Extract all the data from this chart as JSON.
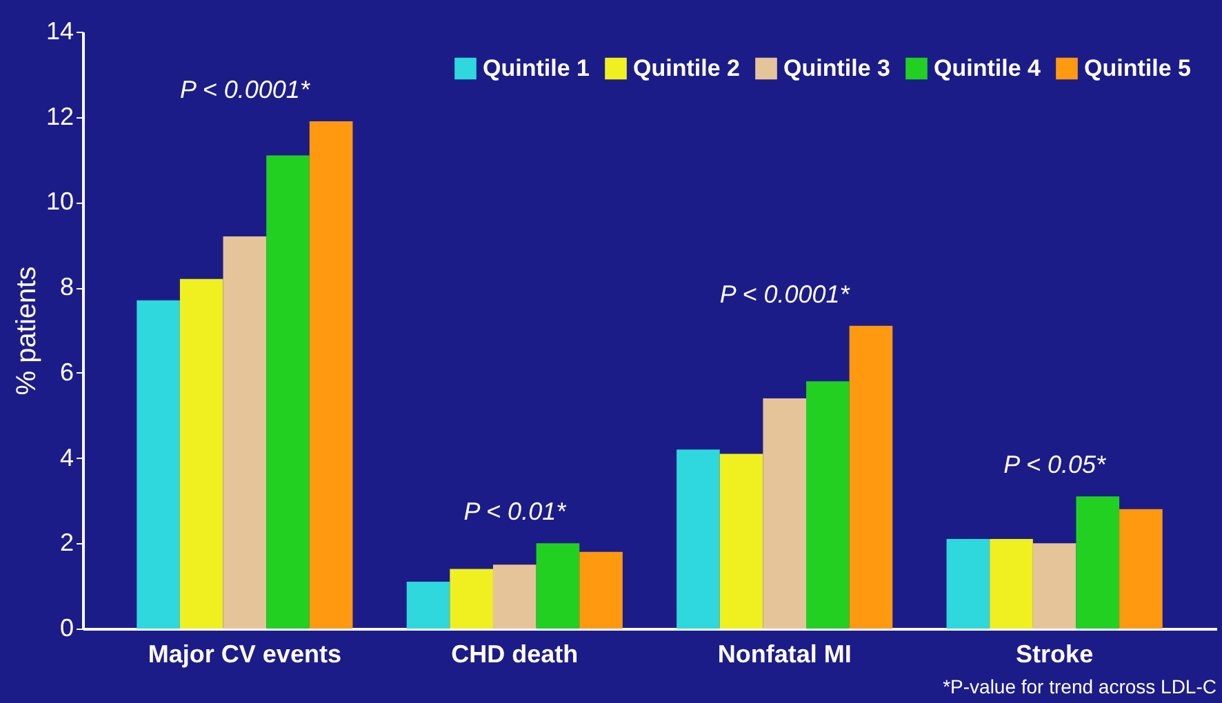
{
  "chart_data": {
    "type": "bar",
    "ylabel": "% patients",
    "categories": [
      "Major CV events",
      "CHD death",
      "Nonfatal MI",
      "Stroke"
    ],
    "series": [
      {
        "name": "Quintile 1",
        "color": "#2ed8dc",
        "values": [
          7.7,
          1.1,
          4.2,
          2.1
        ]
      },
      {
        "name": "Quintile 2",
        "color": "#f0f020",
        "values": [
          8.2,
          1.4,
          4.1,
          2.1
        ]
      },
      {
        "name": "Quintile 3",
        "color": "#e6c49a",
        "values": [
          9.2,
          1.5,
          5.4,
          2.0
        ]
      },
      {
        "name": "Quintile 4",
        "color": "#22d022",
        "values": [
          11.1,
          2.0,
          5.8,
          3.1
        ]
      },
      {
        "name": "Quintile 5",
        "color": "#ff9a10",
        "values": [
          11.9,
          1.8,
          7.1,
          2.8
        ]
      }
    ],
    "ylim": [
      0,
      14
    ],
    "yticks": [
      0,
      2,
      4,
      6,
      8,
      10,
      12,
      14
    ],
    "grid": false,
    "legend": "top right",
    "annotations": [
      "P < 0.0001*",
      "P < 0.01*",
      "P < 0.0001*",
      "P < 0.05*",
      "*P-value for trend across LDL-C"
    ]
  }
}
